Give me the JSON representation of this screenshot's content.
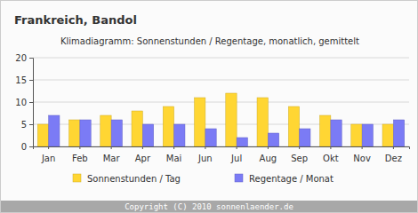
{
  "chart_data": {
    "type": "bar",
    "title": "Frankreich, Bandol",
    "subtitle": "Klimadiagramm: Sonnenstunden / Regentage, monatlich, gemittelt",
    "footer": "Copyright (C) 2010 sonnenlaender.de",
    "categories": [
      "Jan",
      "Feb",
      "Mar",
      "Apr",
      "Mai",
      "Jun",
      "Jul",
      "Aug",
      "Sep",
      "Okt",
      "Nov",
      "Dez"
    ],
    "series": [
      {
        "name": "Sonnenstunden / Tag",
        "color": "#ffd633",
        "values": [
          5,
          6,
          7,
          8,
          9,
          11,
          12,
          11,
          9,
          7,
          5,
          5
        ]
      },
      {
        "name": "Regentage / Monat",
        "color": "#7b7bf5",
        "values": [
          7,
          6,
          6,
          5,
          5,
          4,
          2,
          3,
          4,
          6,
          5,
          6
        ]
      }
    ],
    "ylim": [
      0,
      20
    ],
    "yticks": [
      0,
      5,
      10,
      15,
      20
    ],
    "grid": true,
    "legend": "bottom"
  }
}
